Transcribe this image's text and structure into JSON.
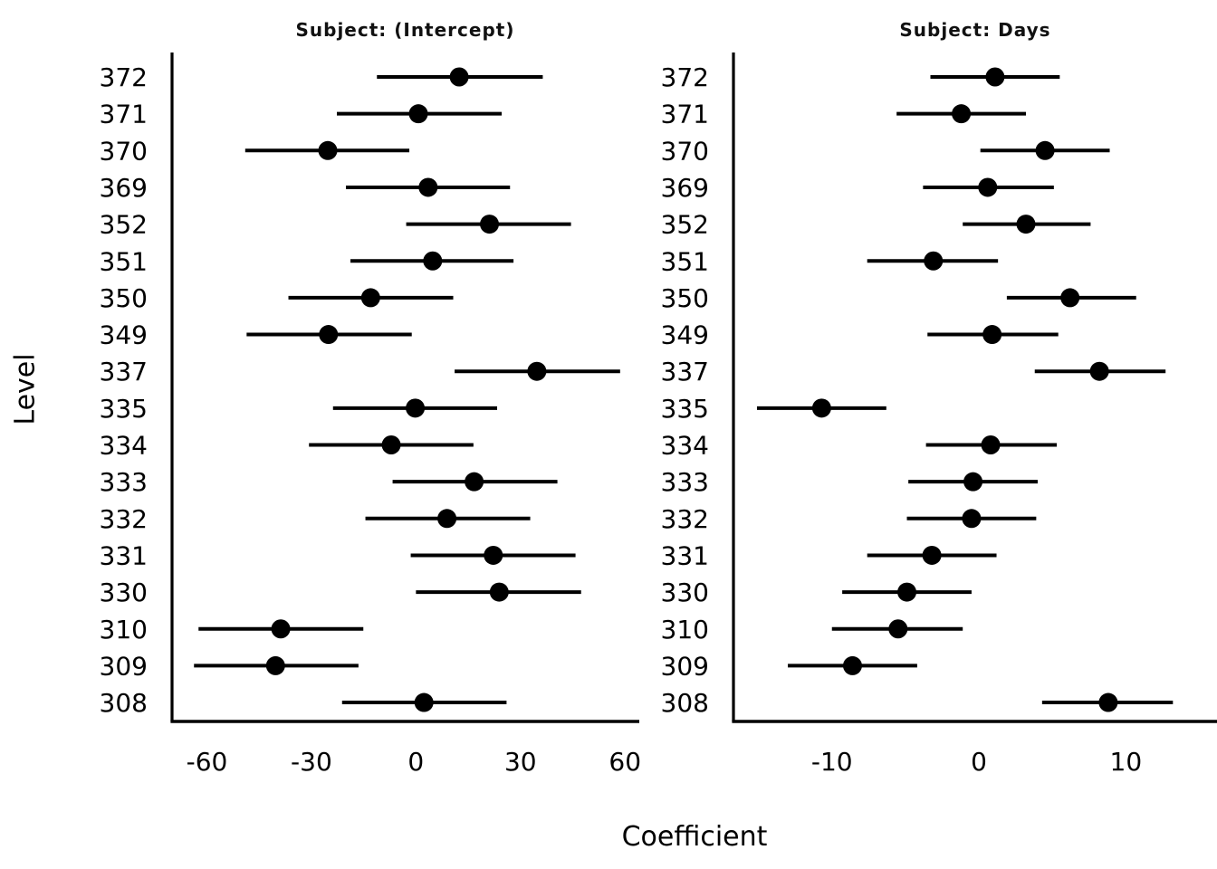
{
  "figure": {
    "background_color": "#ffffff",
    "foreground_color": "#000000"
  },
  "chart_data": {
    "type": "scatter",
    "subtype": "dot-and-whisker caterpillar plot (point estimate with interval)",
    "xlabel": "Coefficient",
    "ylabel": "Level",
    "legend": "none",
    "grid": false,
    "levels_top_to_bottom": [
      "372",
      "371",
      "370",
      "369",
      "352",
      "351",
      "350",
      "349",
      "337",
      "335",
      "334",
      "333",
      "332",
      "331",
      "330",
      "310",
      "309",
      "308"
    ],
    "panels": [
      {
        "title": "Subject: (Intercept)",
        "xticks": [
          "-60",
          "-30",
          "0",
          "30",
          "60"
        ],
        "xtick_values": [
          -60,
          -30,
          0,
          30,
          60
        ],
        "xlim": [
          -70.0,
          64.1
        ],
        "points": [
          {
            "level": "372",
            "est": 12.4,
            "lo": -11.2,
            "hi": 36.4
          },
          {
            "level": "371",
            "est": 0.7,
            "lo": -22.7,
            "hi": 24.6
          },
          {
            "level": "370",
            "est": -25.3,
            "lo": -49.0,
            "hi": -1.9
          },
          {
            "level": "369",
            "est": 3.5,
            "lo": -20.1,
            "hi": 27.0
          },
          {
            "level": "352",
            "est": 21.1,
            "lo": -2.8,
            "hi": 44.5
          },
          {
            "level": "351",
            "est": 4.8,
            "lo": -18.8,
            "hi": 28.0
          },
          {
            "level": "350",
            "est": -13.0,
            "lo": -36.6,
            "hi": 10.7
          },
          {
            "level": "349",
            "est": -25.1,
            "lo": -48.6,
            "hi": -1.2
          },
          {
            "level": "337",
            "est": 34.7,
            "lo": 11.1,
            "hi": 58.6
          },
          {
            "level": "335",
            "est": -0.2,
            "lo": -23.8,
            "hi": 23.3
          },
          {
            "level": "334",
            "est": -7.1,
            "lo": -30.7,
            "hi": 16.5
          },
          {
            "level": "333",
            "est": 16.7,
            "lo": -6.7,
            "hi": 40.6
          },
          {
            "level": "332",
            "est": 8.9,
            "lo": -14.5,
            "hi": 32.8
          },
          {
            "level": "331",
            "est": 22.2,
            "lo": -1.5,
            "hi": 45.8
          },
          {
            "level": "330",
            "est": 23.9,
            "lo": 0.0,
            "hi": 47.4
          },
          {
            "level": "310",
            "est": -38.8,
            "lo": -62.4,
            "hi": -15.1
          },
          {
            "level": "309",
            "est": -40.3,
            "lo": -63.7,
            "hi": -16.5
          },
          {
            "level": "308",
            "est": 2.3,
            "lo": -21.2,
            "hi": 26.0
          }
        ]
      },
      {
        "title": "Subject: Days",
        "xticks": [
          "-10",
          "0",
          "10"
        ],
        "xtick_values": [
          -10,
          0,
          10
        ],
        "xlim": [
          -16.7,
          16.2
        ],
        "points": [
          {
            "level": "372",
            "est": 1.1,
            "lo": -3.3,
            "hi": 5.5
          },
          {
            "level": "371",
            "est": -1.2,
            "lo": -5.6,
            "hi": 3.2
          },
          {
            "level": "370",
            "est": 4.5,
            "lo": 0.1,
            "hi": 8.9
          },
          {
            "level": "369",
            "est": 0.6,
            "lo": -3.8,
            "hi": 5.1
          },
          {
            "level": "352",
            "est": 3.2,
            "lo": -1.1,
            "hi": 7.6
          },
          {
            "level": "351",
            "est": -3.1,
            "lo": -7.6,
            "hi": 1.3
          },
          {
            "level": "350",
            "est": 6.2,
            "lo": 1.9,
            "hi": 10.7
          },
          {
            "level": "349",
            "est": 0.9,
            "lo": -3.5,
            "hi": 5.4
          },
          {
            "level": "337",
            "est": 8.2,
            "lo": 3.8,
            "hi": 12.7
          },
          {
            "level": "335",
            "est": -10.7,
            "lo": -15.1,
            "hi": -6.3
          },
          {
            "level": "334",
            "est": 0.8,
            "lo": -3.6,
            "hi": 5.3
          },
          {
            "level": "333",
            "est": -0.4,
            "lo": -4.8,
            "hi": 4.0
          },
          {
            "level": "332",
            "est": -0.5,
            "lo": -4.9,
            "hi": 3.9
          },
          {
            "level": "331",
            "est": -3.2,
            "lo": -7.6,
            "hi": 1.2
          },
          {
            "level": "330",
            "est": -4.9,
            "lo": -9.3,
            "hi": -0.5
          },
          {
            "level": "310",
            "est": -5.5,
            "lo": -10.0,
            "hi": -1.1
          },
          {
            "level": "309",
            "est": -8.6,
            "lo": -13.0,
            "hi": -4.2
          },
          {
            "level": "308",
            "est": 8.8,
            "lo": 4.3,
            "hi": 13.2
          }
        ]
      }
    ]
  }
}
